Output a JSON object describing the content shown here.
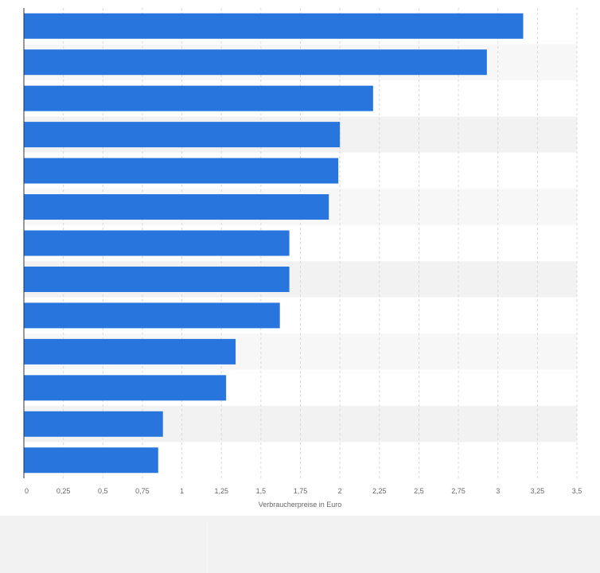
{
  "chart_data": {
    "type": "bar",
    "orientation": "horizontal",
    "title": "",
    "xlabel": "Verbraucherpreise in Euro",
    "ylabel": "",
    "categories": [
      "",
      "",
      "",
      "",
      "",
      "",
      "",
      "",
      "",
      "",
      "",
      "",
      ""
    ],
    "values": [
      3.16,
      2.93,
      2.21,
      2.0,
      1.99,
      1.93,
      1.68,
      1.68,
      1.62,
      1.34,
      1.28,
      0.88,
      0.85
    ],
    "xlim": [
      0,
      3.5
    ],
    "ticks": [
      0,
      0.25,
      0.5,
      0.75,
      1,
      1.25,
      1.5,
      1.75,
      2,
      2.25,
      2.5,
      2.75,
      3,
      3.25,
      3.5
    ],
    "tick_labels": [
      "0",
      "0,25",
      "0,5",
      "0,75",
      "1",
      "1,25",
      "1,5",
      "1,75",
      "2",
      "2,25",
      "2,5",
      "2,75",
      "3",
      "3,25",
      "3,5"
    ],
    "grid": true,
    "legend": "none"
  },
  "colors": {
    "bar": "#2876dd",
    "band_light": "#f7f7f7",
    "band_dark": "#f2f2f2",
    "grid": "#d9d9d9",
    "axis": "#333333",
    "tick_text": "#666666",
    "axis_title": "#666666"
  }
}
